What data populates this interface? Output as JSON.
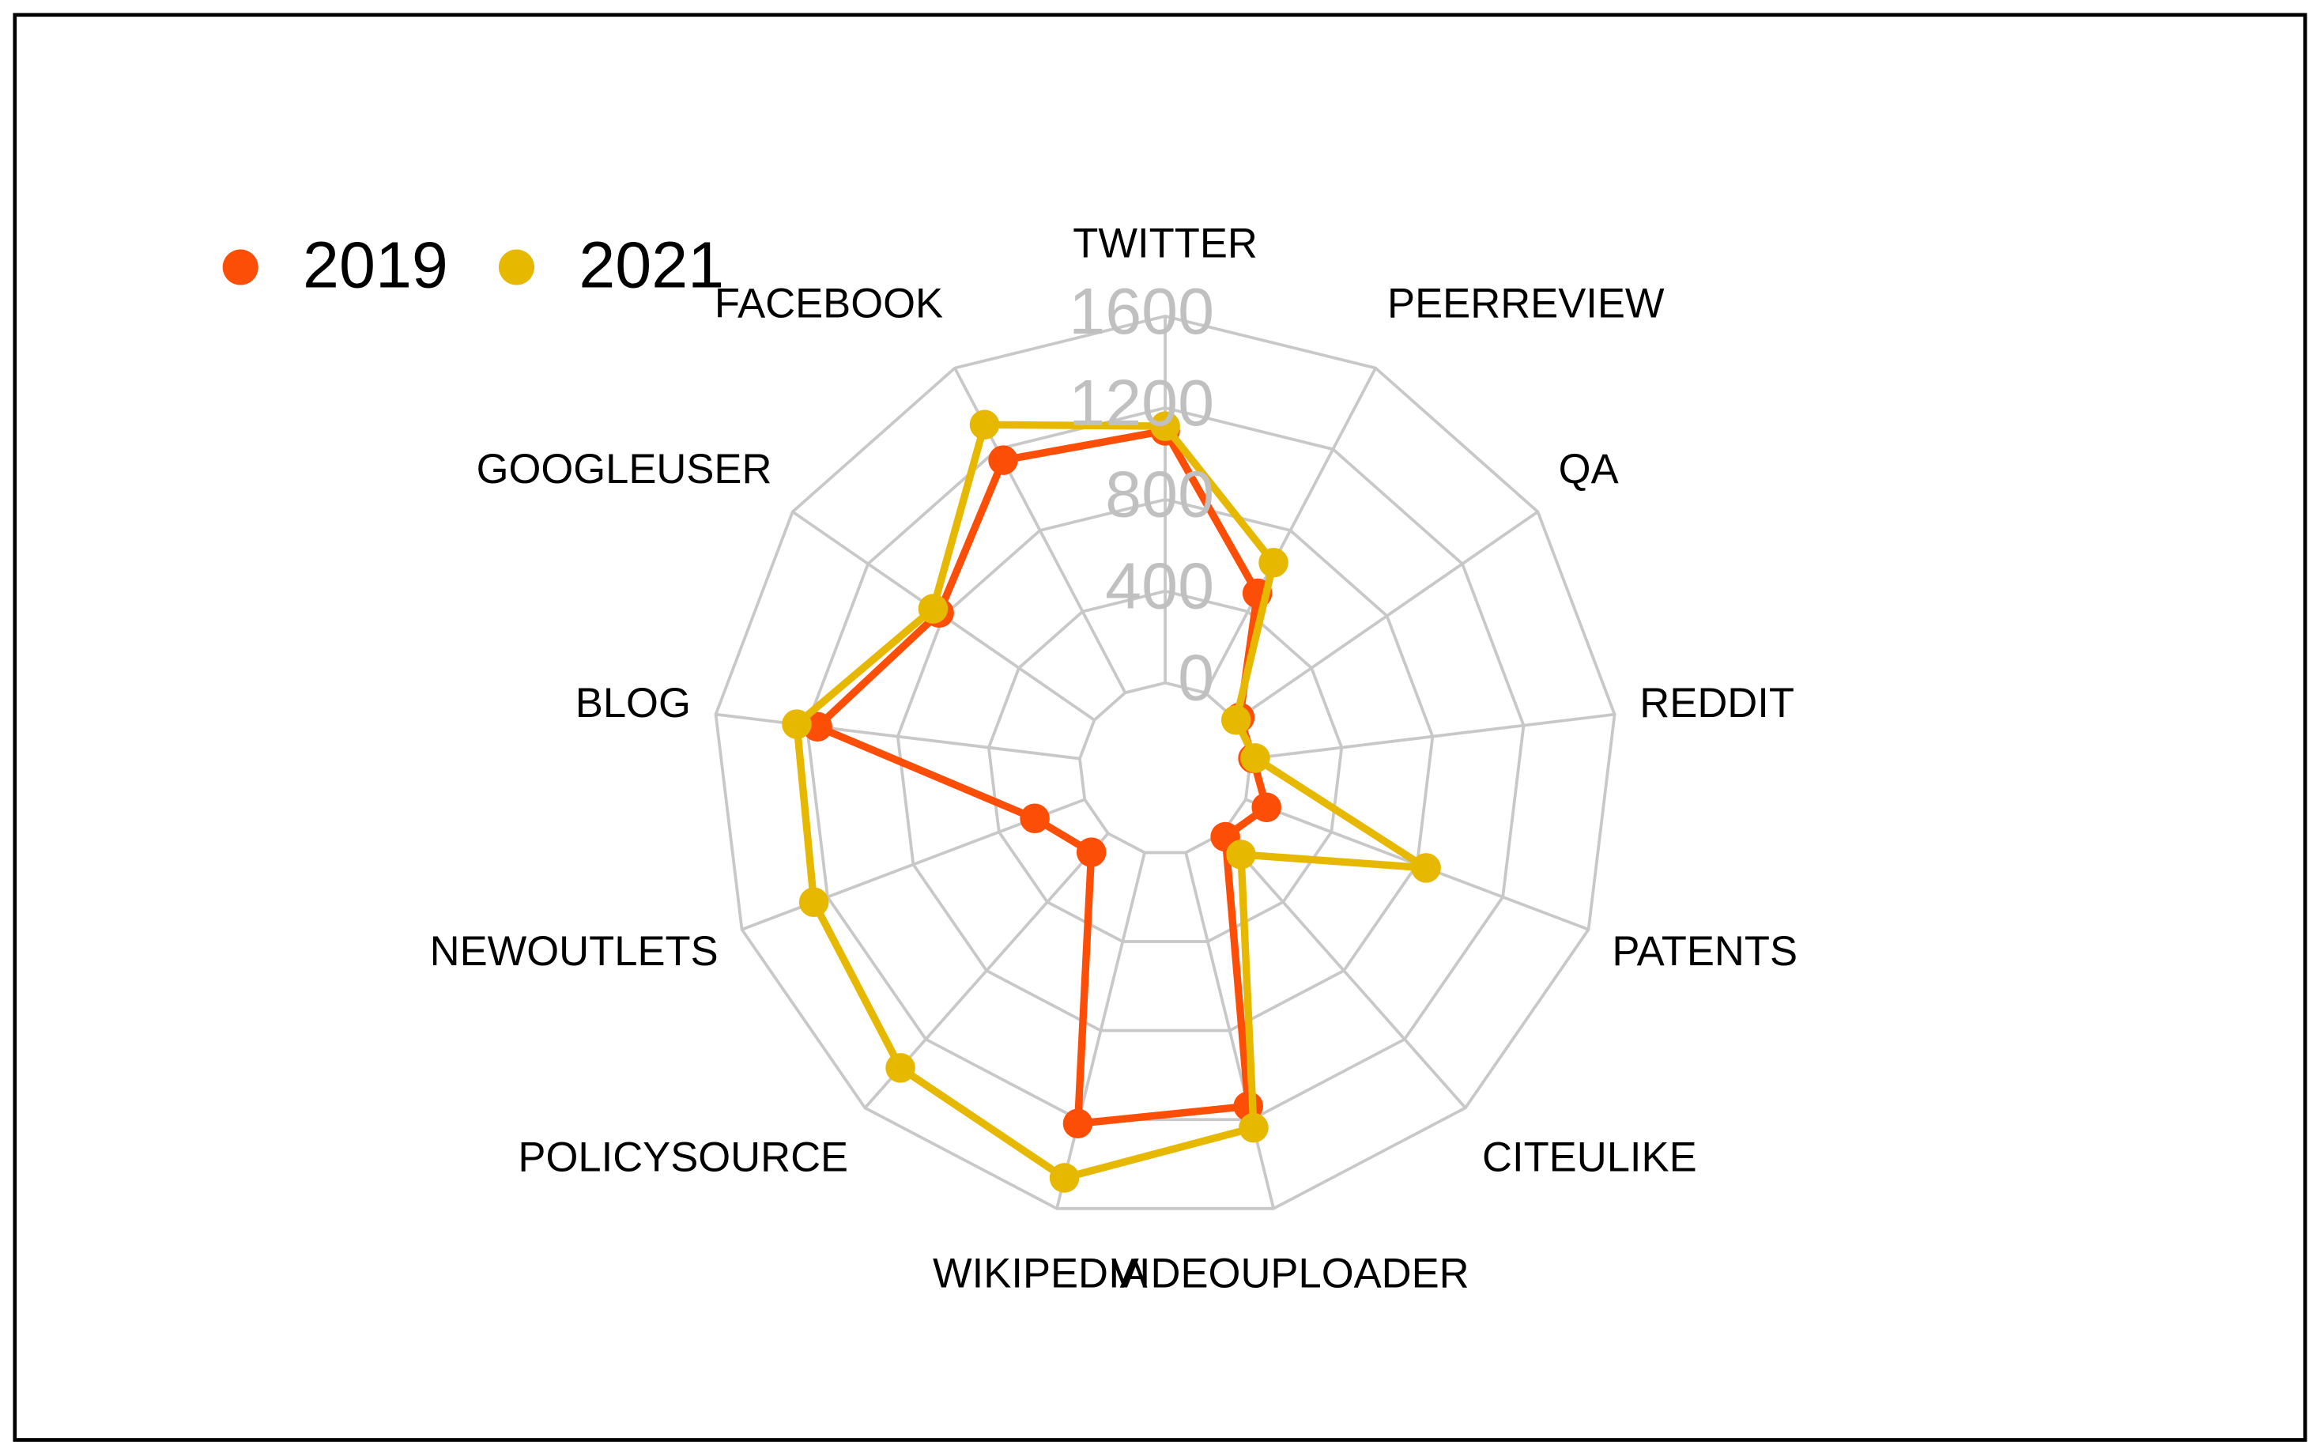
{
  "chart_data": {
    "type": "radar",
    "categories": [
      "TWITTER",
      "PEERREVIEW",
      "QA",
      "REDDIT",
      "PATENTS",
      "CITEULIKE",
      "VIDEOUPLOADER",
      "WIKIPEDIA",
      "POLICYSOURCE",
      "NEWOUTLETS",
      "BLOG",
      "GOOGLEUSER",
      "FACEBOOK"
    ],
    "series": [
      {
        "name": "2019",
        "color": "#fc4e07",
        "values": [
          1100,
          490,
          20,
          10,
          97,
          20,
          1140,
          1218,
          110,
          233,
          1153,
          823,
          1146
        ]
      },
      {
        "name": "2021",
        "color": "#e7b800",
        "values": [
          1120,
          641,
          0,
          20,
          842,
          123,
          1237,
          1462,
          1367,
          1264,
          1244,
          855,
          1321
        ]
      }
    ],
    "ylim": [
      0,
      1600
    ],
    "yticks": [
      0,
      400,
      800,
      1200,
      1600
    ],
    "grid": true,
    "legend": "top-left"
  }
}
